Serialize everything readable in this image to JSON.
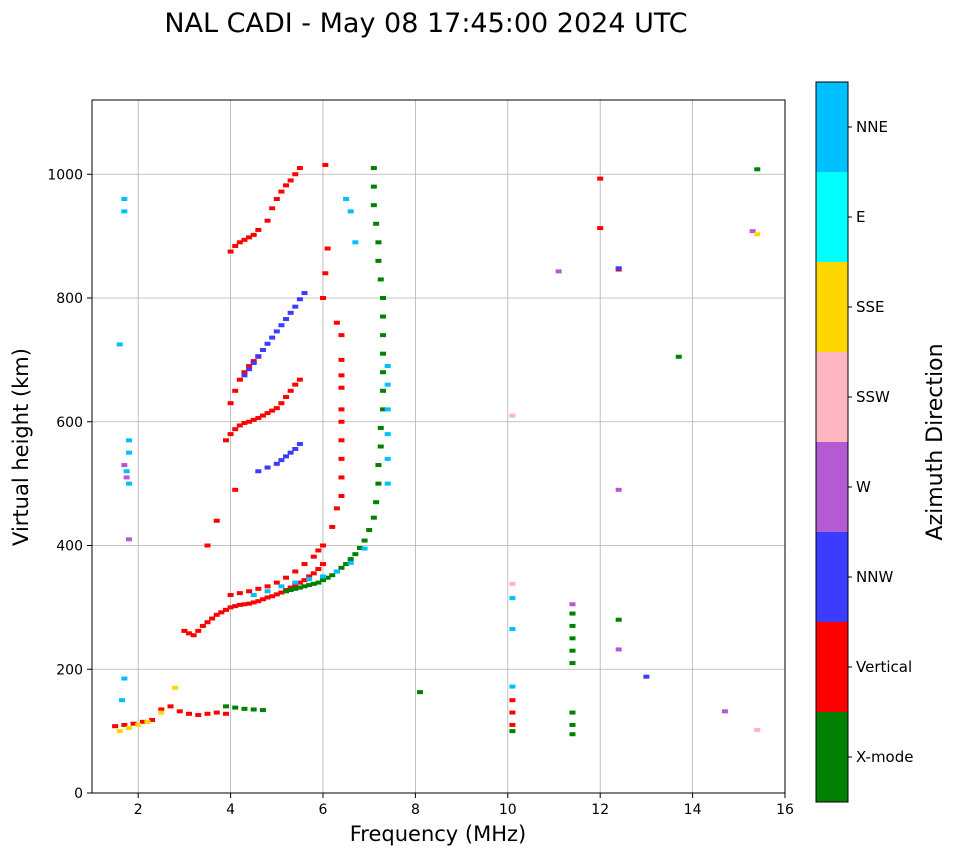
{
  "chart_data": {
    "type": "scatter",
    "title": "NAL CADI - May 08 17:45:00 2024 UTC",
    "xlabel": "Frequency (MHz)",
    "ylabel": "Virtual height (km)",
    "xlim": [
      1,
      16
    ],
    "ylim": [
      0,
      1120
    ],
    "xticks": [
      2,
      4,
      6,
      8,
      10,
      12,
      14,
      16
    ],
    "yticks": [
      0,
      200,
      400,
      600,
      800,
      1000
    ],
    "grid": true,
    "colorbar": {
      "title": "Azimuth Direction",
      "categories": [
        {
          "name": "X-mode",
          "color": "#008000"
        },
        {
          "name": "Vertical",
          "color": "#ff0000"
        },
        {
          "name": "NNW",
          "color": "#3c3cff"
        },
        {
          "name": "W",
          "color": "#b45ad2"
        },
        {
          "name": "SSW",
          "color": "#ffb6c1"
        },
        {
          "name": "SSE",
          "color": "#ffd700"
        },
        {
          "name": "E",
          "color": "#00ffff"
        },
        {
          "name": "NNE",
          "color": "#00bfff"
        }
      ]
    },
    "traces": [
      {
        "category": "Vertical",
        "points": [
          [
            3.0,
            262
          ],
          [
            3.1,
            258
          ],
          [
            3.2,
            255
          ],
          [
            3.3,
            262
          ],
          [
            3.4,
            270
          ],
          [
            3.5,
            276
          ],
          [
            3.6,
            282
          ],
          [
            3.7,
            288
          ],
          [
            3.8,
            292
          ],
          [
            3.9,
            296
          ],
          [
            4.0,
            300
          ],
          [
            4.1,
            302
          ],
          [
            4.2,
            304
          ],
          [
            4.3,
            305
          ],
          [
            4.4,
            306
          ],
          [
            4.5,
            308
          ],
          [
            4.6,
            310
          ],
          [
            4.7,
            313
          ],
          [
            4.8,
            316
          ],
          [
            4.9,
            318
          ],
          [
            5.0,
            321
          ],
          [
            5.1,
            324
          ],
          [
            5.2,
            328
          ],
          [
            5.3,
            332
          ],
          [
            5.4,
            336
          ],
          [
            5.5,
            340
          ],
          [
            5.6,
            344
          ],
          [
            5.7,
            350
          ],
          [
            5.8,
            355
          ],
          [
            5.9,
            362
          ],
          [
            6.0,
            370
          ]
        ]
      },
      {
        "category": "Vertical",
        "points": [
          [
            4.0,
            320
          ],
          [
            4.2,
            323
          ],
          [
            4.4,
            326
          ],
          [
            4.6,
            330
          ],
          [
            4.8,
            334
          ],
          [
            5.0,
            340
          ],
          [
            5.2,
            348
          ],
          [
            5.4,
            358
          ],
          [
            5.6,
            370
          ],
          [
            5.8,
            382
          ],
          [
            5.9,
            392
          ],
          [
            6.0,
            400
          ]
        ]
      },
      {
        "category": "X-mode",
        "points": [
          [
            5.2,
            326
          ],
          [
            5.3,
            328
          ],
          [
            5.4,
            330
          ],
          [
            5.5,
            332
          ],
          [
            5.6,
            334
          ],
          [
            5.7,
            336
          ],
          [
            5.8,
            338
          ],
          [
            5.9,
            340
          ],
          [
            6.0,
            344
          ],
          [
            6.1,
            348
          ],
          [
            6.2,
            352
          ],
          [
            6.3,
            358
          ],
          [
            6.4,
            364
          ],
          [
            6.5,
            370
          ],
          [
            6.6,
            378
          ],
          [
            6.7,
            386
          ],
          [
            6.8,
            396
          ],
          [
            6.9,
            408
          ],
          [
            7.0,
            425
          ],
          [
            7.1,
            445
          ],
          [
            7.15,
            470
          ],
          [
            7.2,
            500
          ],
          [
            7.2,
            530
          ],
          [
            7.25,
            560
          ],
          [
            7.25,
            590
          ],
          [
            7.3,
            620
          ],
          [
            7.3,
            650
          ],
          [
            7.3,
            680
          ],
          [
            7.3,
            710
          ],
          [
            7.3,
            740
          ],
          [
            7.3,
            770
          ],
          [
            7.3,
            800
          ],
          [
            7.25,
            830
          ],
          [
            7.2,
            860
          ],
          [
            7.2,
            890
          ],
          [
            7.15,
            920
          ],
          [
            7.1,
            950
          ],
          [
            7.1,
            980
          ],
          [
            7.1,
            1010
          ]
        ]
      },
      {
        "category": "NNE",
        "points": [
          [
            4.5,
            320
          ],
          [
            4.8,
            326
          ],
          [
            5.1,
            334
          ],
          [
            5.4,
            340
          ],
          [
            5.7,
            346
          ],
          [
            6.0,
            350
          ],
          [
            6.3,
            358
          ],
          [
            6.6,
            372
          ],
          [
            6.9,
            395
          ],
          [
            7.4,
            500
          ],
          [
            7.4,
            540
          ],
          [
            7.4,
            580
          ],
          [
            7.4,
            620
          ],
          [
            7.4,
            660
          ],
          [
            7.4,
            690
          ],
          [
            6.5,
            960
          ],
          [
            6.6,
            940
          ],
          [
            6.7,
            890
          ]
        ]
      },
      {
        "category": "Vertical",
        "points": [
          [
            3.9,
            570
          ],
          [
            4.0,
            580
          ],
          [
            4.1,
            588
          ],
          [
            4.2,
            594
          ],
          [
            4.3,
            598
          ],
          [
            4.4,
            600
          ],
          [
            4.5,
            603
          ],
          [
            4.6,
            606
          ],
          [
            4.7,
            610
          ],
          [
            4.8,
            614
          ],
          [
            4.9,
            618
          ],
          [
            5.0,
            622
          ],
          [
            5.1,
            630
          ],
          [
            5.2,
            640
          ],
          [
            5.3,
            650
          ],
          [
            5.4,
            660
          ],
          [
            5.5,
            668
          ]
        ]
      },
      {
        "category": "Vertical",
        "points": [
          [
            4.0,
            630
          ],
          [
            4.1,
            650
          ],
          [
            4.2,
            668
          ],
          [
            4.3,
            680
          ],
          [
            4.4,
            690
          ],
          [
            4.5,
            698
          ],
          [
            4.6,
            705
          ]
        ]
      },
      {
        "category": "NNW",
        "points": [
          [
            4.3,
            675
          ],
          [
            4.4,
            685
          ],
          [
            4.5,
            695
          ],
          [
            4.6,
            706
          ],
          [
            4.7,
            716
          ],
          [
            4.8,
            726
          ],
          [
            4.9,
            736
          ],
          [
            5.0,
            746
          ],
          [
            5.1,
            756
          ],
          [
            5.2,
            766
          ],
          [
            5.3,
            776
          ],
          [
            5.4,
            786
          ],
          [
            5.5,
            798
          ],
          [
            5.6,
            808
          ]
        ]
      },
      {
        "category": "NNW",
        "points": [
          [
            4.6,
            520
          ],
          [
            4.8,
            526
          ],
          [
            5.0,
            532
          ],
          [
            5.1,
            538
          ],
          [
            5.2,
            544
          ],
          [
            5.3,
            550
          ],
          [
            5.4,
            556
          ],
          [
            5.5,
            564
          ]
        ]
      },
      {
        "category": "Vertical",
        "points": [
          [
            4.0,
            875
          ],
          [
            4.1,
            884
          ],
          [
            4.2,
            890
          ],
          [
            4.3,
            894
          ],
          [
            4.4,
            898
          ],
          [
            4.5,
            902
          ],
          [
            4.6,
            910
          ],
          [
            4.8,
            925
          ],
          [
            4.9,
            945
          ],
          [
            5.0,
            960
          ],
          [
            5.1,
            972
          ],
          [
            5.2,
            982
          ],
          [
            5.3,
            990
          ],
          [
            5.4,
            1000
          ],
          [
            5.5,
            1010
          ]
        ]
      },
      {
        "category": "Vertical",
        "points": [
          [
            6.05,
            1015
          ],
          [
            6.1,
            880
          ],
          [
            6.05,
            840
          ],
          [
            6.0,
            800
          ],
          [
            6.3,
            760
          ],
          [
            6.4,
            740
          ],
          [
            6.4,
            700
          ],
          [
            6.4,
            675
          ],
          [
            6.4,
            655
          ],
          [
            6.4,
            620
          ],
          [
            6.4,
            600
          ],
          [
            6.4,
            570
          ],
          [
            6.4,
            540
          ],
          [
            6.4,
            510
          ],
          [
            6.4,
            480
          ],
          [
            6.3,
            460
          ],
          [
            6.2,
            430
          ],
          [
            3.5,
            400
          ],
          [
            3.7,
            440
          ],
          [
            4.1,
            490
          ]
        ]
      },
      {
        "category": "Vertical",
        "points": [
          [
            2.5,
            135
          ],
          [
            2.7,
            140
          ],
          [
            2.9,
            132
          ],
          [
            3.1,
            128
          ],
          [
            3.3,
            126
          ],
          [
            3.5,
            128
          ],
          [
            3.7,
            130
          ],
          [
            3.9,
            128
          ]
        ]
      },
      {
        "category": "X-mode",
        "points": [
          [
            3.9,
            140
          ],
          [
            4.1,
            138
          ],
          [
            4.3,
            136
          ],
          [
            4.5,
            135
          ],
          [
            4.7,
            134
          ]
        ]
      },
      {
        "category": "Vertical",
        "points": [
          [
            1.5,
            108
          ],
          [
            1.7,
            110
          ],
          [
            1.9,
            112
          ],
          [
            2.1,
            115
          ],
          [
            2.3,
            118
          ]
        ]
      },
      {
        "category": "SSE",
        "points": [
          [
            1.6,
            100
          ],
          [
            1.8,
            105
          ],
          [
            2.0,
            110
          ],
          [
            2.2,
            115
          ],
          [
            2.5,
            130
          ],
          [
            2.8,
            170
          ]
        ]
      },
      {
        "category": "NNE",
        "points": [
          [
            1.6,
            725
          ],
          [
            1.7,
            960
          ],
          [
            1.7,
            940
          ],
          [
            1.8,
            570
          ],
          [
            1.8,
            550
          ],
          [
            1.75,
            520
          ],
          [
            1.8,
            500
          ],
          [
            1.65,
            150
          ],
          [
            1.7,
            185
          ]
        ]
      },
      {
        "category": "W",
        "points": [
          [
            1.7,
            530
          ],
          [
            1.75,
            510
          ],
          [
            1.8,
            410
          ]
        ]
      },
      {
        "category": "X-mode",
        "points": [
          [
            11.4,
            290
          ],
          [
            11.4,
            270
          ],
          [
            11.4,
            250
          ],
          [
            11.4,
            230
          ],
          [
            11.4,
            210
          ],
          [
            11.4,
            130
          ],
          [
            11.4,
            110
          ],
          [
            11.4,
            95
          ]
        ]
      },
      {
        "category": "W",
        "points": [
          [
            11.4,
            305
          ],
          [
            12.4,
            490
          ],
          [
            12.4,
            232
          ],
          [
            11.1,
            843
          ],
          [
            15.3,
            908
          ],
          [
            14.7,
            132
          ]
        ]
      },
      {
        "category": "Vertical",
        "points": [
          [
            10.1,
            150
          ],
          [
            10.1,
            130
          ],
          [
            10.1,
            110
          ],
          [
            12.4,
            846
          ],
          [
            12.0,
            993
          ],
          [
            12.0,
            913
          ]
        ]
      },
      {
        "category": "X-mode",
        "points": [
          [
            10.1,
            100
          ],
          [
            15.4,
            1008
          ],
          [
            13.7,
            705
          ],
          [
            12.4,
            280
          ],
          [
            8.1,
            163
          ]
        ]
      },
      {
        "category": "NNE",
        "points": [
          [
            10.1,
            172
          ],
          [
            10.1,
            315
          ],
          [
            10.1,
            265
          ]
        ]
      },
      {
        "category": "SSW",
        "points": [
          [
            10.1,
            610
          ],
          [
            10.1,
            338
          ],
          [
            15.4,
            102
          ]
        ]
      },
      {
        "category": "SSE",
        "points": [
          [
            15.4,
            903
          ]
        ]
      },
      {
        "category": "NNW",
        "points": [
          [
            13.0,
            188
          ],
          [
            12.4,
            848
          ]
        ]
      }
    ]
  }
}
